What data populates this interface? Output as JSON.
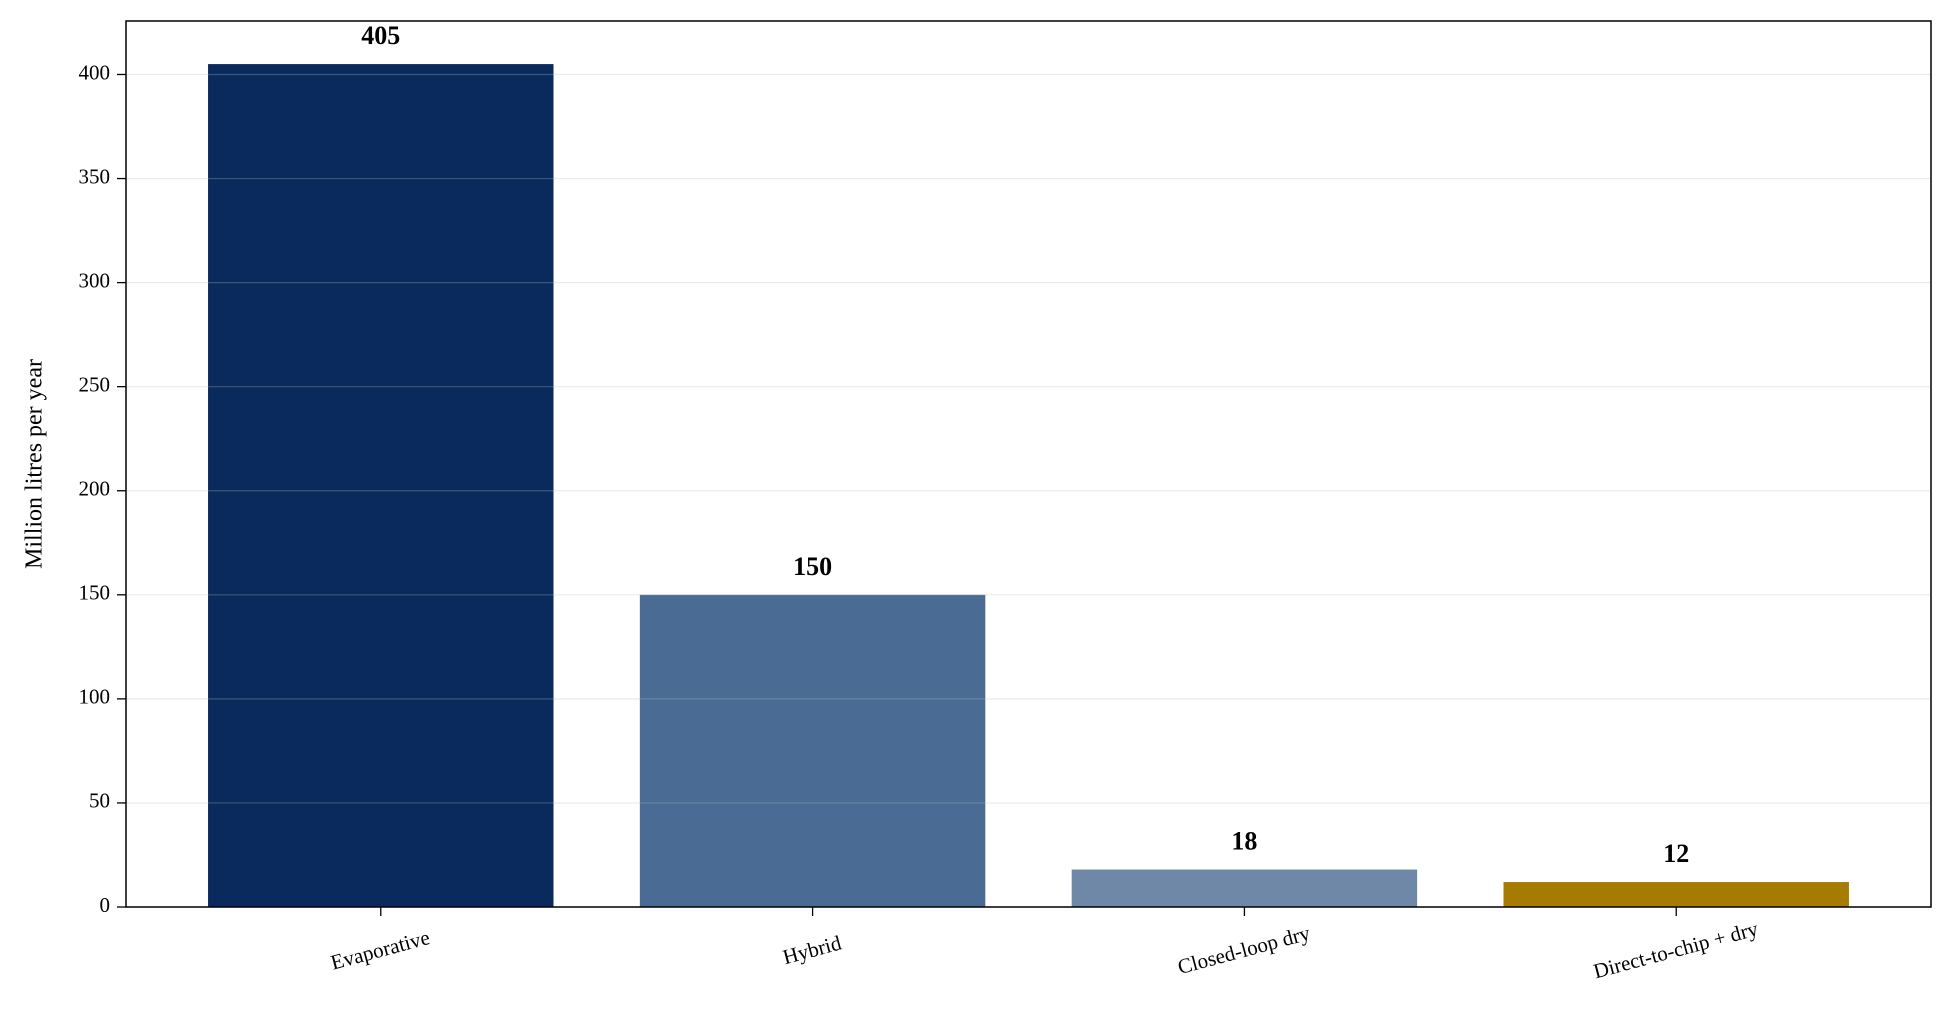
{
  "chart_data": {
    "type": "bar",
    "y_label": "Million litres per year",
    "categories": [
      "Evaporative",
      "Hybrid",
      "Closed-loop dry",
      "Direct-to-chip + dry"
    ],
    "values": [
      405,
      150,
      18,
      12
    ],
    "colors": [
      "#0a2a5e",
      "#4a6b94",
      "#7088a8",
      "#a67c00"
    ],
    "ylim": [
      0,
      425.7
    ],
    "yticks": [
      0,
      50,
      100,
      150,
      200,
      250,
      300,
      350,
      400
    ],
    "grid": true
  }
}
